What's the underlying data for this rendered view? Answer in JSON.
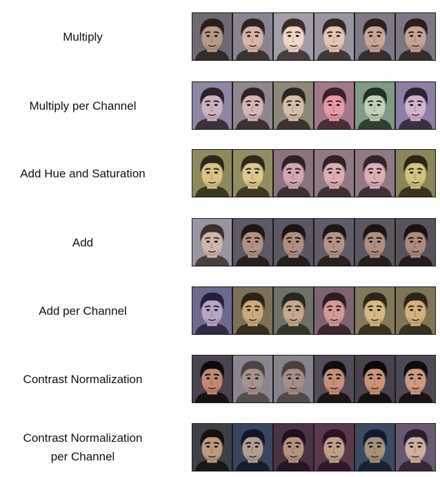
{
  "rows": [
    {
      "label": "Multiply",
      "faces": [
        {
          "skin": "#b99a8a",
          "bg": "#6f6a72",
          "hair": "#2a1f1c"
        },
        {
          "skin": "#d8b6a6",
          "bg": "#8a8490",
          "hair": "#2e2320"
        },
        {
          "skin": "#f2d7c9",
          "bg": "#a39ea8",
          "hair": "#3a2c28"
        },
        {
          "skin": "#e7c6b5",
          "bg": "#9a95a0",
          "hair": "#332724"
        },
        {
          "skin": "#c9a797",
          "bg": "#7f7a86",
          "hair": "#2b201d"
        },
        {
          "skin": "#c6a494",
          "bg": "#7c7783",
          "hair": "#2a1f1c"
        }
      ]
    },
    {
      "label": "Multiply per Channel",
      "faces": [
        {
          "skin": "#cdb3c2",
          "bg": "#8e86a2",
          "hair": "#2c2228"
        },
        {
          "skin": "#d9b6b8",
          "bg": "#918690",
          "hair": "#2e2224"
        },
        {
          "skin": "#d6c0a9",
          "bg": "#8e8878",
          "hair": "#2c2620"
        },
        {
          "skin": "#e99aa8",
          "bg": "#a2788a",
          "hair": "#3a2028"
        },
        {
          "skin": "#bfd3b8",
          "bg": "#7f9a86",
          "hair": "#233026"
        },
        {
          "skin": "#d2b4cf",
          "bg": "#8d7ea6",
          "hair": "#2c2232"
        }
      ]
    },
    {
      "label": "Add Hue and Saturation",
      "faces": [
        {
          "skin": "#d8c584",
          "bg": "#8f8a5e",
          "hair": "#2c2818"
        },
        {
          "skin": "#dcc98c",
          "bg": "#928d62",
          "hair": "#2e2a1a"
        },
        {
          "skin": "#d4a8b0",
          "bg": "#8a7480",
          "hair": "#2e2226"
        },
        {
          "skin": "#deaeb2",
          "bg": "#927a84",
          "hair": "#302226"
        },
        {
          "skin": "#dcb0b6",
          "bg": "#907a86",
          "hair": "#302428"
        },
        {
          "skin": "#d4c380",
          "bg": "#8a865a",
          "hair": "#2a2616"
        }
      ]
    },
    {
      "label": "Add",
      "faces": [
        {
          "skin": "#d0b6ac",
          "bg": "#9a94a0",
          "hair": "#3a302e"
        },
        {
          "skin": "#b39285",
          "bg": "#5e5964",
          "hair": "#1e1614"
        },
        {
          "skin": "#b08f82",
          "bg": "#5b5660",
          "hair": "#1c1412"
        },
        {
          "skin": "#b59486",
          "bg": "#615c66",
          "hair": "#1e1614"
        },
        {
          "skin": "#b18f82",
          "bg": "#5c5761",
          "hair": "#1c1412"
        },
        {
          "skin": "#ac8b7e",
          "bg": "#57525c",
          "hair": "#1a1210"
        }
      ]
    },
    {
      "label": "Add per Channel",
      "faces": [
        {
          "skin": "#b7a6c4",
          "bg": "#6e6a8e",
          "hair": "#24203a"
        },
        {
          "skin": "#cfa97e",
          "bg": "#7c7058",
          "hair": "#2c2214"
        },
        {
          "skin": "#c8a88e",
          "bg": "#6f7166",
          "hair": "#242a1e"
        },
        {
          "skin": "#d49a96",
          "bg": "#7e6470",
          "hair": "#301c22"
        },
        {
          "skin": "#d6b984",
          "bg": "#82785a",
          "hair": "#2e2616"
        },
        {
          "skin": "#d2b080",
          "bg": "#7e7456",
          "hair": "#2c2414"
        }
      ]
    },
    {
      "label": "Contrast Normalization",
      "faces": [
        {
          "skin": "#c28a70",
          "bg": "#4a4450",
          "hair": "#0e0a08"
        },
        {
          "skin": "#a8948c",
          "bg": "#8a8690",
          "hair": "#4c4442"
        },
        {
          "skin": "#a69088",
          "bg": "#86828c",
          "hair": "#4a403e"
        },
        {
          "skin": "#c89078",
          "bg": "#524c58",
          "hair": "#120c0a"
        },
        {
          "skin": "#cc9478",
          "bg": "#48424e",
          "hair": "#0c0806"
        },
        {
          "skin": "#d09a82",
          "bg": "#4e4854",
          "hair": "#100a08"
        }
      ]
    },
    {
      "label": "Contrast Normalization per Channel",
      "label_lines": [
        "Contrast Normalization",
        "per Channel"
      ],
      "faces": [
        {
          "skin": "#bf9a7e",
          "bg": "#3e4048",
          "hair": "#14120e"
        },
        {
          "skin": "#b2a08e",
          "bg": "#3a4660",
          "hair": "#121624"
        },
        {
          "skin": "#b4947e",
          "bg": "#4a3444",
          "hair": "#1e1020"
        },
        {
          "skin": "#c0a088",
          "bg": "#5a3a4a",
          "hair": "#2a1422"
        },
        {
          "skin": "#a89278",
          "bg": "#3c4a64",
          "hair": "#141a2a"
        },
        {
          "skin": "#cfb0a0",
          "bg": "#6a5870",
          "hair": "#2a1e2c"
        }
      ]
    }
  ]
}
